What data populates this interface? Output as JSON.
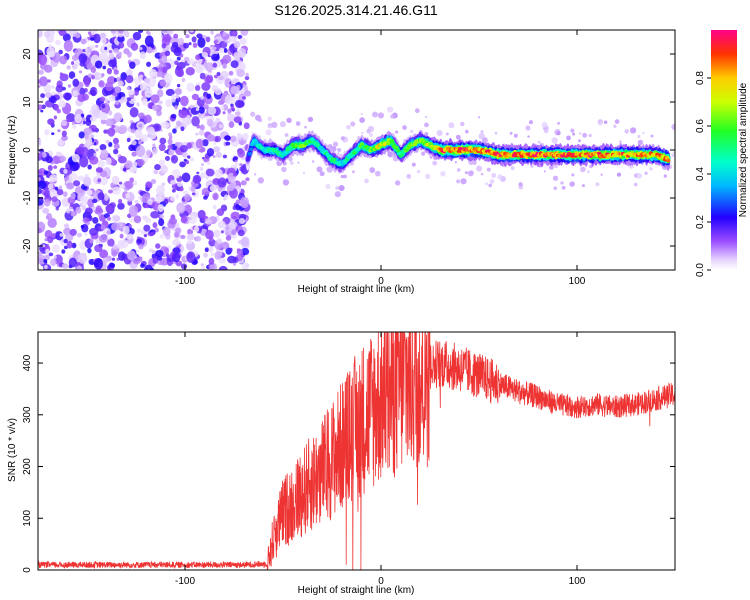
{
  "title": "S126.2025.314.21.46.G11",
  "chart_data": [
    {
      "type": "heatmap",
      "name": "spectrogram",
      "xlabel": "Height of straight line (km)",
      "ylabel": "Frequency (Hz)",
      "xlim": [
        -175,
        150
      ],
      "ylim": [
        -25,
        25
      ],
      "xticks": [
        -100,
        0,
        100
      ],
      "yticks": [
        -20,
        -10,
        0,
        10,
        20
      ],
      "noise_region_x": [
        -175,
        -68
      ],
      "signal_track": {
        "x": [
          -68,
          -65,
          -60,
          -55,
          -50,
          -45,
          -40,
          -35,
          -30,
          -25,
          -20,
          -15,
          -10,
          -5,
          0,
          5,
          10,
          15,
          20,
          25,
          30,
          40,
          50,
          60,
          70,
          80,
          90,
          100,
          110,
          120,
          130,
          140,
          147
        ],
        "frequency_hz": [
          -2,
          2,
          0,
          0,
          -1,
          1,
          1,
          2,
          0,
          -2,
          -3,
          -1,
          1,
          0,
          1,
          2,
          -1,
          1,
          2,
          1,
          0,
          0,
          0,
          -1,
          -1,
          -1,
          -1,
          -1,
          -1,
          -1,
          -1,
          -1,
          -2
        ],
        "amplitude": [
          0.2,
          0.4,
          0.45,
          0.5,
          0.45,
          0.55,
          0.6,
          0.5,
          0.45,
          0.5,
          0.4,
          0.5,
          0.55,
          0.6,
          0.75,
          0.65,
          0.5,
          0.6,
          0.65,
          0.7,
          0.85,
          0.9,
          0.85,
          0.9,
          0.85,
          0.9,
          0.85,
          0.9,
          0.85,
          0.85,
          0.8,
          0.8,
          0.85
        ]
      }
    },
    {
      "type": "colorbar",
      "label": "Normalized spectral amplitude",
      "range": [
        0,
        1
      ],
      "ticks": [
        "0.0",
        "0.2",
        "0.4",
        "0.6",
        "0.8"
      ],
      "tick_values": [
        0,
        0.2,
        0.4,
        0.6,
        0.8
      ]
    },
    {
      "type": "line",
      "name": "snr",
      "xlabel": "Height of straight line (km)",
      "ylabel": "SNR (10 * v/v)",
      "xlim": [
        -175,
        150
      ],
      "ylim": [
        0,
        460
      ],
      "xticks": [
        -100,
        0,
        100
      ],
      "yticks": [
        0,
        100,
        200,
        300,
        400
      ],
      "color": "#ee3333",
      "trend": {
        "x": [
          -175,
          -150,
          -100,
          -70,
          -58,
          -55,
          -50,
          -45,
          -40,
          -30,
          -20,
          -10,
          0,
          10,
          20,
          25,
          30,
          40,
          50,
          60,
          70,
          80,
          90,
          100,
          110,
          120,
          130,
          140,
          150
        ],
        "y": [
          10,
          10,
          10,
          10,
          12,
          60,
          110,
          130,
          150,
          190,
          240,
          290,
          330,
          360,
          380,
          395,
          400,
          390,
          375,
          360,
          345,
          335,
          320,
          315,
          320,
          315,
          320,
          330,
          340
        ]
      }
    }
  ]
}
